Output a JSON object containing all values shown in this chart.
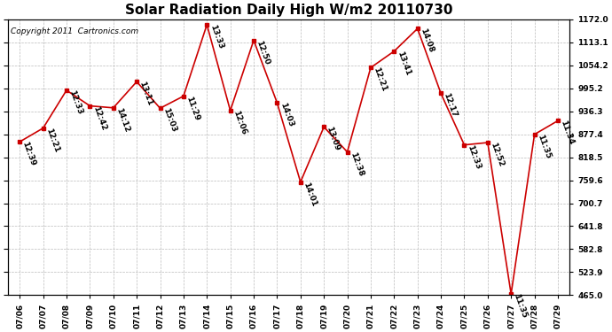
{
  "title": "Solar Radiation Daily High W/m2 20110730",
  "copyright": "Copyright 2011  Cartronics.com",
  "dates": [
    "07/06",
    "07/07",
    "07/08",
    "07/09",
    "07/10",
    "07/11",
    "07/12",
    "07/13",
    "07/14",
    "07/15",
    "07/16",
    "07/17",
    "07/18",
    "07/19",
    "07/20",
    "07/21",
    "07/22",
    "07/23",
    "07/24",
    "07/25",
    "07/26",
    "07/27",
    "07/28",
    "07/29"
  ],
  "values": [
    858,
    893,
    990,
    950,
    945,
    1012,
    944,
    975,
    1158,
    938,
    1118,
    958,
    755,
    896,
    832,
    1048,
    1090,
    1148,
    982,
    850,
    856,
    468,
    877,
    912
  ],
  "labels": [
    "12:39",
    "12:21",
    "12:33",
    "12:42",
    "14:12",
    "13:11",
    "15:03",
    "11:29",
    "13:33",
    "12:06",
    "12:50",
    "14:03",
    "14:01",
    "13:09",
    "12:38",
    "12:21",
    "13:41",
    "14:08",
    "12:17",
    "12:33",
    "12:52",
    "11:35",
    "11:35",
    "11:34"
  ],
  "line_color": "#cc0000",
  "marker_color": "#cc0000",
  "bg_color": "#ffffff",
  "grid_color": "#bbbbbb",
  "ylim_min": 465.0,
  "ylim_max": 1172.0,
  "yticks": [
    465.0,
    523.9,
    582.8,
    641.8,
    700.7,
    759.6,
    818.5,
    877.4,
    936.3,
    995.2,
    1054.2,
    1113.1,
    1172.0
  ],
  "title_fontsize": 11,
  "label_fontsize": 6.5,
  "copyright_fontsize": 6.5,
  "tick_fontsize": 6.5
}
